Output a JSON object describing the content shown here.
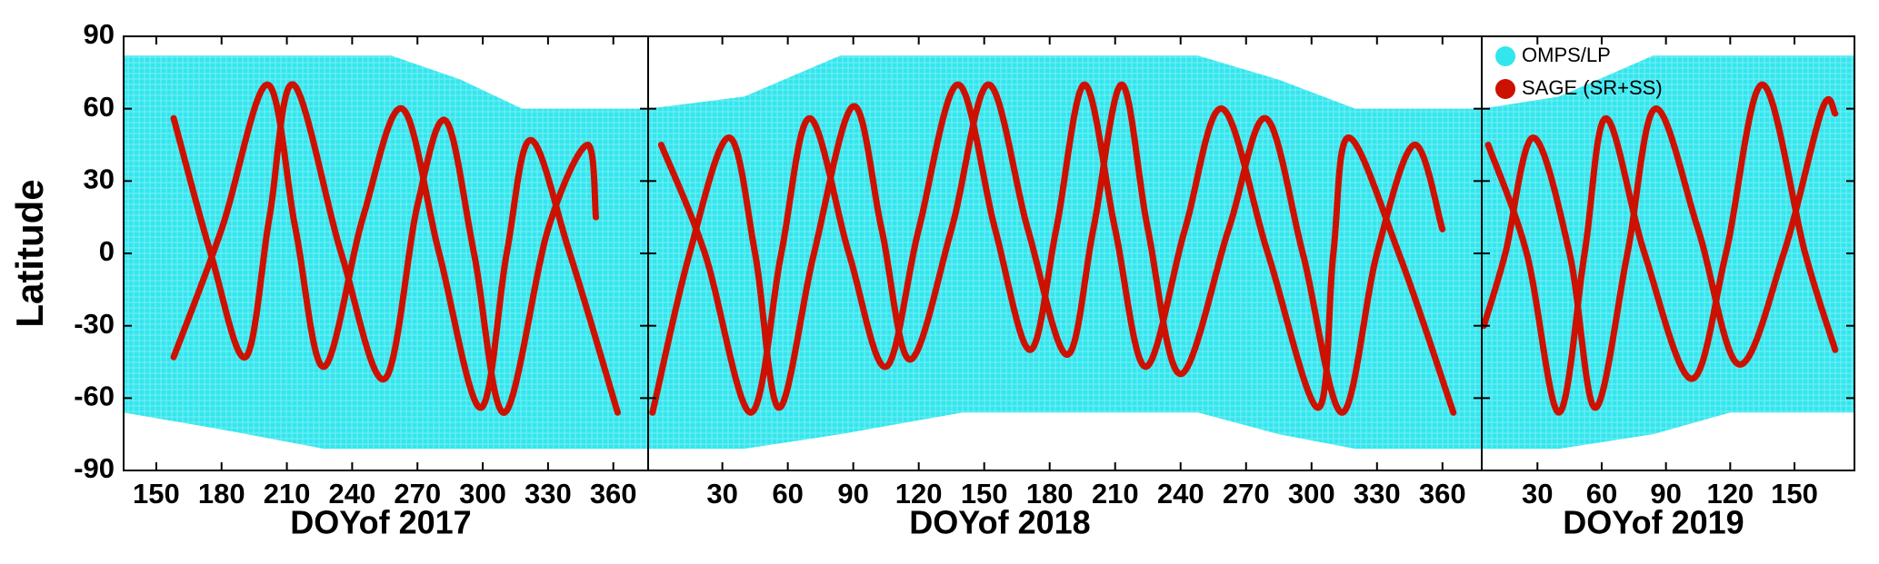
{
  "chart_data": [
    {
      "type": "line",
      "x_label": "DOYof 2017",
      "y_label": "Latitude",
      "xlim": [
        135,
        376
      ],
      "ylim": [
        -90,
        90
      ],
      "xticks": [
        150,
        180,
        210,
        240,
        270,
        300,
        330,
        360
      ],
      "yticks": [
        90,
        60,
        30,
        0,
        -30,
        -60,
        -90
      ],
      "series": [
        {
          "color": "#33e6ee",
          "x": [
            135,
            180,
            227,
            258,
            290,
            318,
            376
          ],
          "values": [
            82,
            82,
            82,
            82,
            72,
            60,
            60
          ],
          "lower_values": [
            -66,
            -73,
            -81,
            -81,
            -81,
            -81,
            -81
          ]
        },
        {
          "color": "#cc1100",
          "tracks": [
            {
              "x": [
                158,
                175,
                191,
                202,
                213,
                235,
                255,
                270,
                283,
                296,
                310,
                330,
                348,
                352
              ],
              "values": [
                56,
                0,
                -43,
                15,
                70,
                0,
                -52,
                20,
                55,
                0,
                -66,
                10,
                45,
                15
              ]
            },
            {
              "x": [
                158,
                180,
                201,
                214,
                227,
                245,
                263,
                280,
                299,
                311,
                322,
                340,
                362
              ],
              "values": [
                -43,
                10,
                70,
                10,
                -47,
                15,
                60,
                0,
                -64,
                0,
                47,
                0,
                -66
              ]
            }
          ]
        }
      ]
    },
    {
      "type": "line",
      "x_label": "DOYof 2018",
      "xlim": [
        -4,
        378
      ],
      "xticks": [
        30,
        60,
        90,
        120,
        150,
        180,
        210,
        240,
        270,
        300,
        330,
        360
      ],
      "series": [
        {
          "color": "#33e6ee",
          "x": [
            -4,
            40,
            84,
            140,
            248,
            285,
            320,
            378
          ],
          "values": [
            60,
            65,
            82,
            82,
            82,
            72,
            60,
            60
          ],
          "lower_values": [
            -81,
            -81,
            -75,
            -66,
            -66,
            -75,
            -81,
            -81
          ]
        },
        {
          "color": "#cc1100",
          "tracks": [
            {
              "x": [
                -2,
                15,
                33,
                45,
                56,
                72,
                90,
                103,
                116,
                135,
                152,
                170,
                188,
                200,
                213,
                225,
                240,
                262,
                279,
                296,
                314,
                330,
                347,
                360
              ],
              "values": [
                -66,
                0,
                48,
                0,
                -64,
                0,
                61,
                10,
                -44,
                10,
                70,
                10,
                -42,
                10,
                70,
                10,
                -50,
                10,
                56,
                0,
                -66,
                0,
                45,
                10
              ]
            },
            {
              "x": [
                2,
                22,
                43,
                57,
                70,
                88,
                105,
                120,
                138,
                155,
                171,
                183,
                196,
                210,
                224,
                242,
                259,
                280,
                303,
                310,
                317,
                340,
                365
              ],
              "values": [
                45,
                0,
                -66,
                0,
                56,
                0,
                -47,
                10,
                70,
                10,
                -40,
                10,
                70,
                10,
                -47,
                10,
                60,
                0,
                -64,
                0,
                48,
                0,
                -66
              ]
            }
          ]
        }
      ]
    },
    {
      "type": "line",
      "x_label": "DOYof 2019",
      "xlim": [
        4,
        178
      ],
      "xticks": [
        30,
        60,
        90,
        120,
        150
      ],
      "legend": "upper left",
      "series": [
        {
          "name": "OMPS/LP",
          "color": "#33e6ee",
          "x": [
            4,
            40,
            84,
            120,
            178
          ],
          "values": [
            60,
            65,
            82,
            82,
            82
          ],
          "lower_values": [
            -81,
            -81,
            -75,
            -66,
            -66
          ]
        },
        {
          "name": "SAGE (SR+SS)",
          "color": "#cc1100",
          "tracks": [
            {
              "x": [
                7,
                25,
                40,
                52,
                62,
                80,
                102,
                118,
                135,
                155,
                169
              ],
              "values": [
                45,
                0,
                -66,
                0,
                56,
                0,
                -52,
                0,
                70,
                0,
                -40
              ]
            },
            {
              "x": [
                5,
                15,
                28,
                45,
                57,
                72,
                85,
                105,
                124,
                145,
                163,
                169
              ],
              "values": [
                -30,
                0,
                48,
                0,
                -64,
                0,
                60,
                10,
                -46,
                0,
                60,
                58
              ]
            }
          ]
        }
      ]
    }
  ]
}
